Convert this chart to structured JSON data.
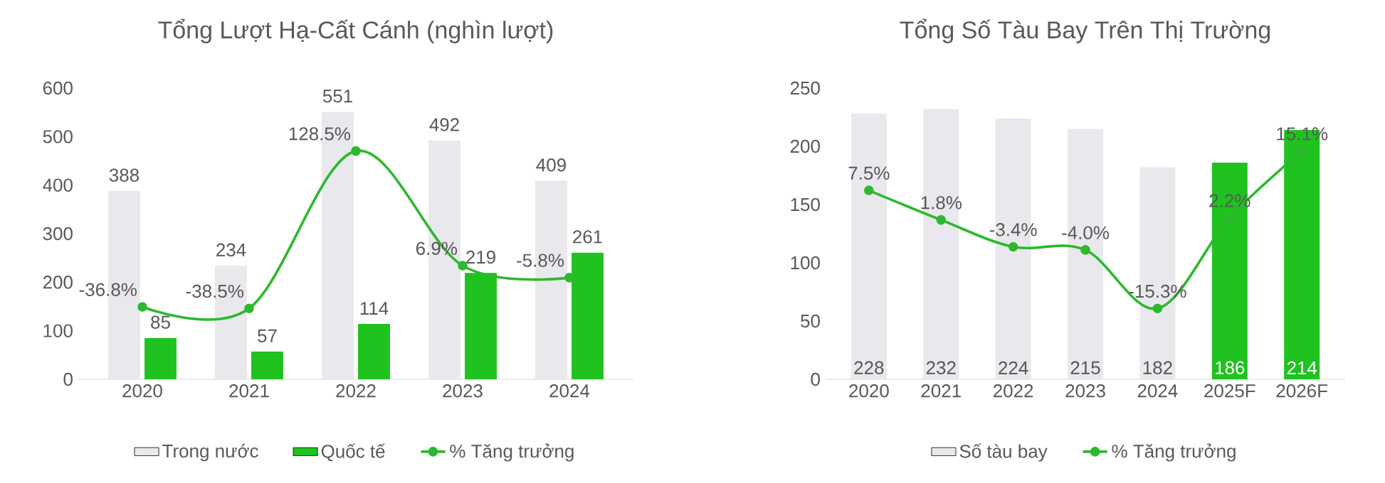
{
  "chart_data": [
    {
      "type": "bar",
      "title": "Tổng Lượt Hạ-Cất Cánh (nghìn lượt)",
      "categories": [
        "2020",
        "2021",
        "2022",
        "2023",
        "2024"
      ],
      "ylim": [
        0,
        600
      ],
      "yticks": [
        0,
        100,
        200,
        300,
        400,
        500,
        600
      ],
      "legend": "bottom",
      "marker": "circle",
      "line_style": "solid",
      "series": [
        {
          "name": "Trong nước",
          "color": "#e9e9ed",
          "values": [
            388,
            234,
            551,
            492,
            409
          ],
          "value_labels": [
            "388",
            "234",
            "551",
            "492",
            "409"
          ]
        },
        {
          "name": "Quốc tế",
          "color": "#1fc21f",
          "values": [
            85,
            57,
            114,
            219,
            261
          ],
          "value_labels": [
            "85",
            "57",
            "114",
            "219",
            "261"
          ]
        },
        {
          "name": "% Tăng trưởng",
          "type": "line",
          "axis": "y2",
          "color": "#2eb82e",
          "values": [
            -36.8,
            -38.5,
            128.5,
            6.9,
            -5.8
          ],
          "value_labels": [
            "-36.8%",
            "-38.5%",
            "128.5%",
            "6.9%",
            "-5.8%"
          ]
        }
      ]
    },
    {
      "type": "bar",
      "title": "Tổng Số Tàu Bay Trên Thị Trường",
      "categories": [
        "2020",
        "2021",
        "2022",
        "2023",
        "2024",
        "2025F",
        "2026F"
      ],
      "ylim": [
        0,
        250
      ],
      "yticks": [
        0,
        50,
        100,
        150,
        200,
        250
      ],
      "legend": "bottom",
      "marker": "circle",
      "line_style": "solid",
      "series": [
        {
          "name": "Số tàu bay",
          "color": "#e9e9ed",
          "colors": [
            "#e9e9ed",
            "#e9e9ed",
            "#e9e9ed",
            "#e9e9ed",
            "#e9e9ed",
            "#1fc21f",
            "#1fc21f"
          ],
          "values": [
            228,
            232,
            224,
            215,
            182,
            186,
            214
          ],
          "value_labels": [
            "228",
            "232",
            "224",
            "215",
            "182",
            "186",
            "214"
          ]
        },
        {
          "name": "% Tăng trưởng",
          "type": "line",
          "axis": "y2",
          "color": "#2eb82e",
          "values": [
            7.5,
            1.8,
            -3.4,
            -4.0,
            -15.3,
            2.2,
            15.1
          ],
          "value_labels": [
            "7.5%",
            "1.8%",
            "-3.4%",
            "-4.0%",
            "-15.3%",
            "2.2%",
            "15.1%"
          ]
        }
      ]
    }
  ]
}
